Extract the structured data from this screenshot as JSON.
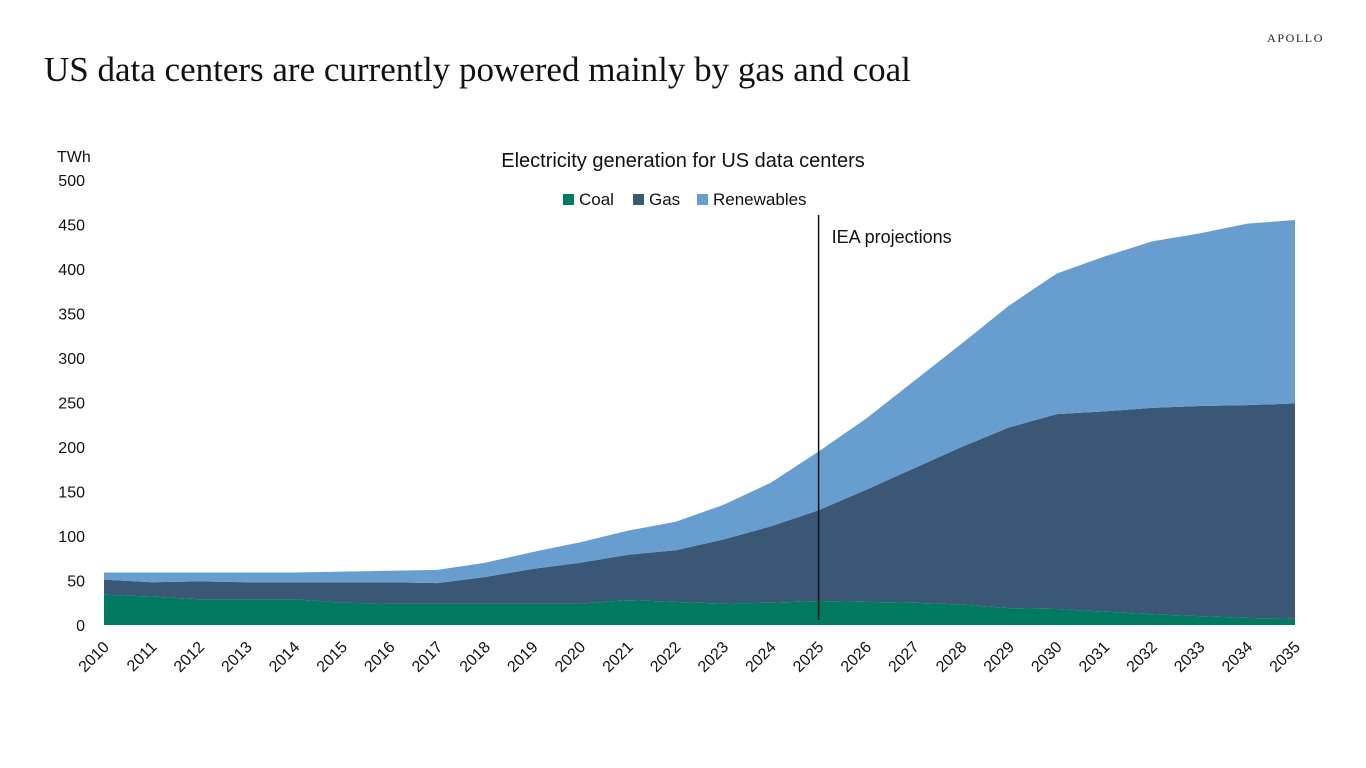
{
  "brand": "APOLLO",
  "headline": "US data centers are currently powered mainly by gas and coal",
  "colors": {
    "Coal": "#007A60",
    "Gas": "#3A5775",
    "Renewables": "#689ECF",
    "axis": "#111111"
  },
  "chart_data": {
    "type": "area",
    "stacked": true,
    "title": "Electricity generation for US data centers",
    "ylabel": "TWh",
    "xlabel": "",
    "ylim": [
      0,
      500
    ],
    "y_ticks": [
      0,
      50,
      100,
      150,
      200,
      250,
      300,
      350,
      400,
      450,
      500
    ],
    "x": [
      "2010",
      "2011",
      "2012",
      "2013",
      "2014",
      "2015",
      "2016",
      "2017",
      "2018",
      "2019",
      "2020",
      "2021",
      "2022",
      "2023",
      "2024",
      "2025",
      "2026",
      "2027",
      "2028",
      "2029",
      "2030",
      "2031",
      "2032",
      "2033",
      "2034",
      "2035"
    ],
    "series": [
      {
        "name": "Coal",
        "values": [
          34,
          32,
          29,
          29,
          29,
          25,
          24,
          24,
          24,
          24,
          24,
          28,
          26,
          24,
          25,
          27,
          26,
          25,
          23,
          19,
          18,
          15,
          12,
          10,
          8,
          7
        ]
      },
      {
        "name": "Gas",
        "values": [
          17,
          16,
          20,
          19,
          19,
          23,
          24,
          23,
          30,
          39,
          46,
          51,
          58,
          72,
          86,
          102,
          126,
          151,
          177,
          203,
          219,
          225,
          232,
          236,
          239,
          242
        ]
      },
      {
        "name": "Renewables",
        "values": [
          8,
          11,
          10,
          11,
          11,
          12,
          13,
          15,
          16,
          19,
          23,
          27,
          32,
          39,
          49,
          66,
          80,
          98,
          116,
          137,
          158,
          174,
          187,
          194,
          204,
          206
        ]
      }
    ],
    "legend": "top-center",
    "grid": false,
    "annotations": [
      {
        "type": "vertical-line",
        "x": "2025",
        "label": "IEA projections"
      }
    ]
  }
}
